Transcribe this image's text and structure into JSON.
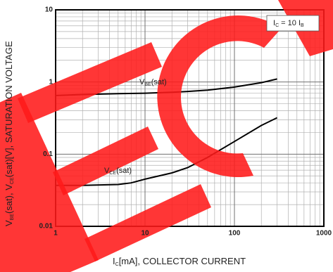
{
  "chart_data": {
    "type": "line",
    "ylabel": [
      "V",
      "BE",
      "(sat), V",
      "CE",
      "(sat)[V], SATURATION VOLTAGE"
    ],
    "xlabel": [
      "I",
      "C",
      "[mA], COLLECTOR CURRENT"
    ],
    "annotation": [
      "I",
      "C",
      " = 10 I",
      "B"
    ],
    "xscale": "log",
    "yscale": "log",
    "grid": true,
    "xlim": [
      1,
      1000
    ],
    "xticks": [
      1,
      10,
      100,
      1000
    ],
    "ylim": [
      0.01,
      10
    ],
    "yticks": [
      0.01,
      0.1,
      1,
      10
    ],
    "series": [
      {
        "name": [
          "V",
          "BE",
          "(sat)"
        ],
        "color": "#000000",
        "x": [
          1,
          2,
          5,
          10,
          20,
          30,
          50,
          100,
          200,
          300
        ],
        "values": [
          0.65,
          0.67,
          0.69,
          0.7,
          0.72,
          0.74,
          0.77,
          0.85,
          0.98,
          1.1
        ]
      },
      {
        "name": [
          "V",
          "CE",
          "(sat)"
        ],
        "color": "#000000",
        "x": [
          1,
          2,
          5,
          7,
          10,
          20,
          30,
          50,
          100,
          200,
          300
        ],
        "values": [
          0.037,
          0.037,
          0.038,
          0.04,
          0.045,
          0.055,
          0.065,
          0.09,
          0.15,
          0.25,
          0.32
        ]
      }
    ]
  }
}
